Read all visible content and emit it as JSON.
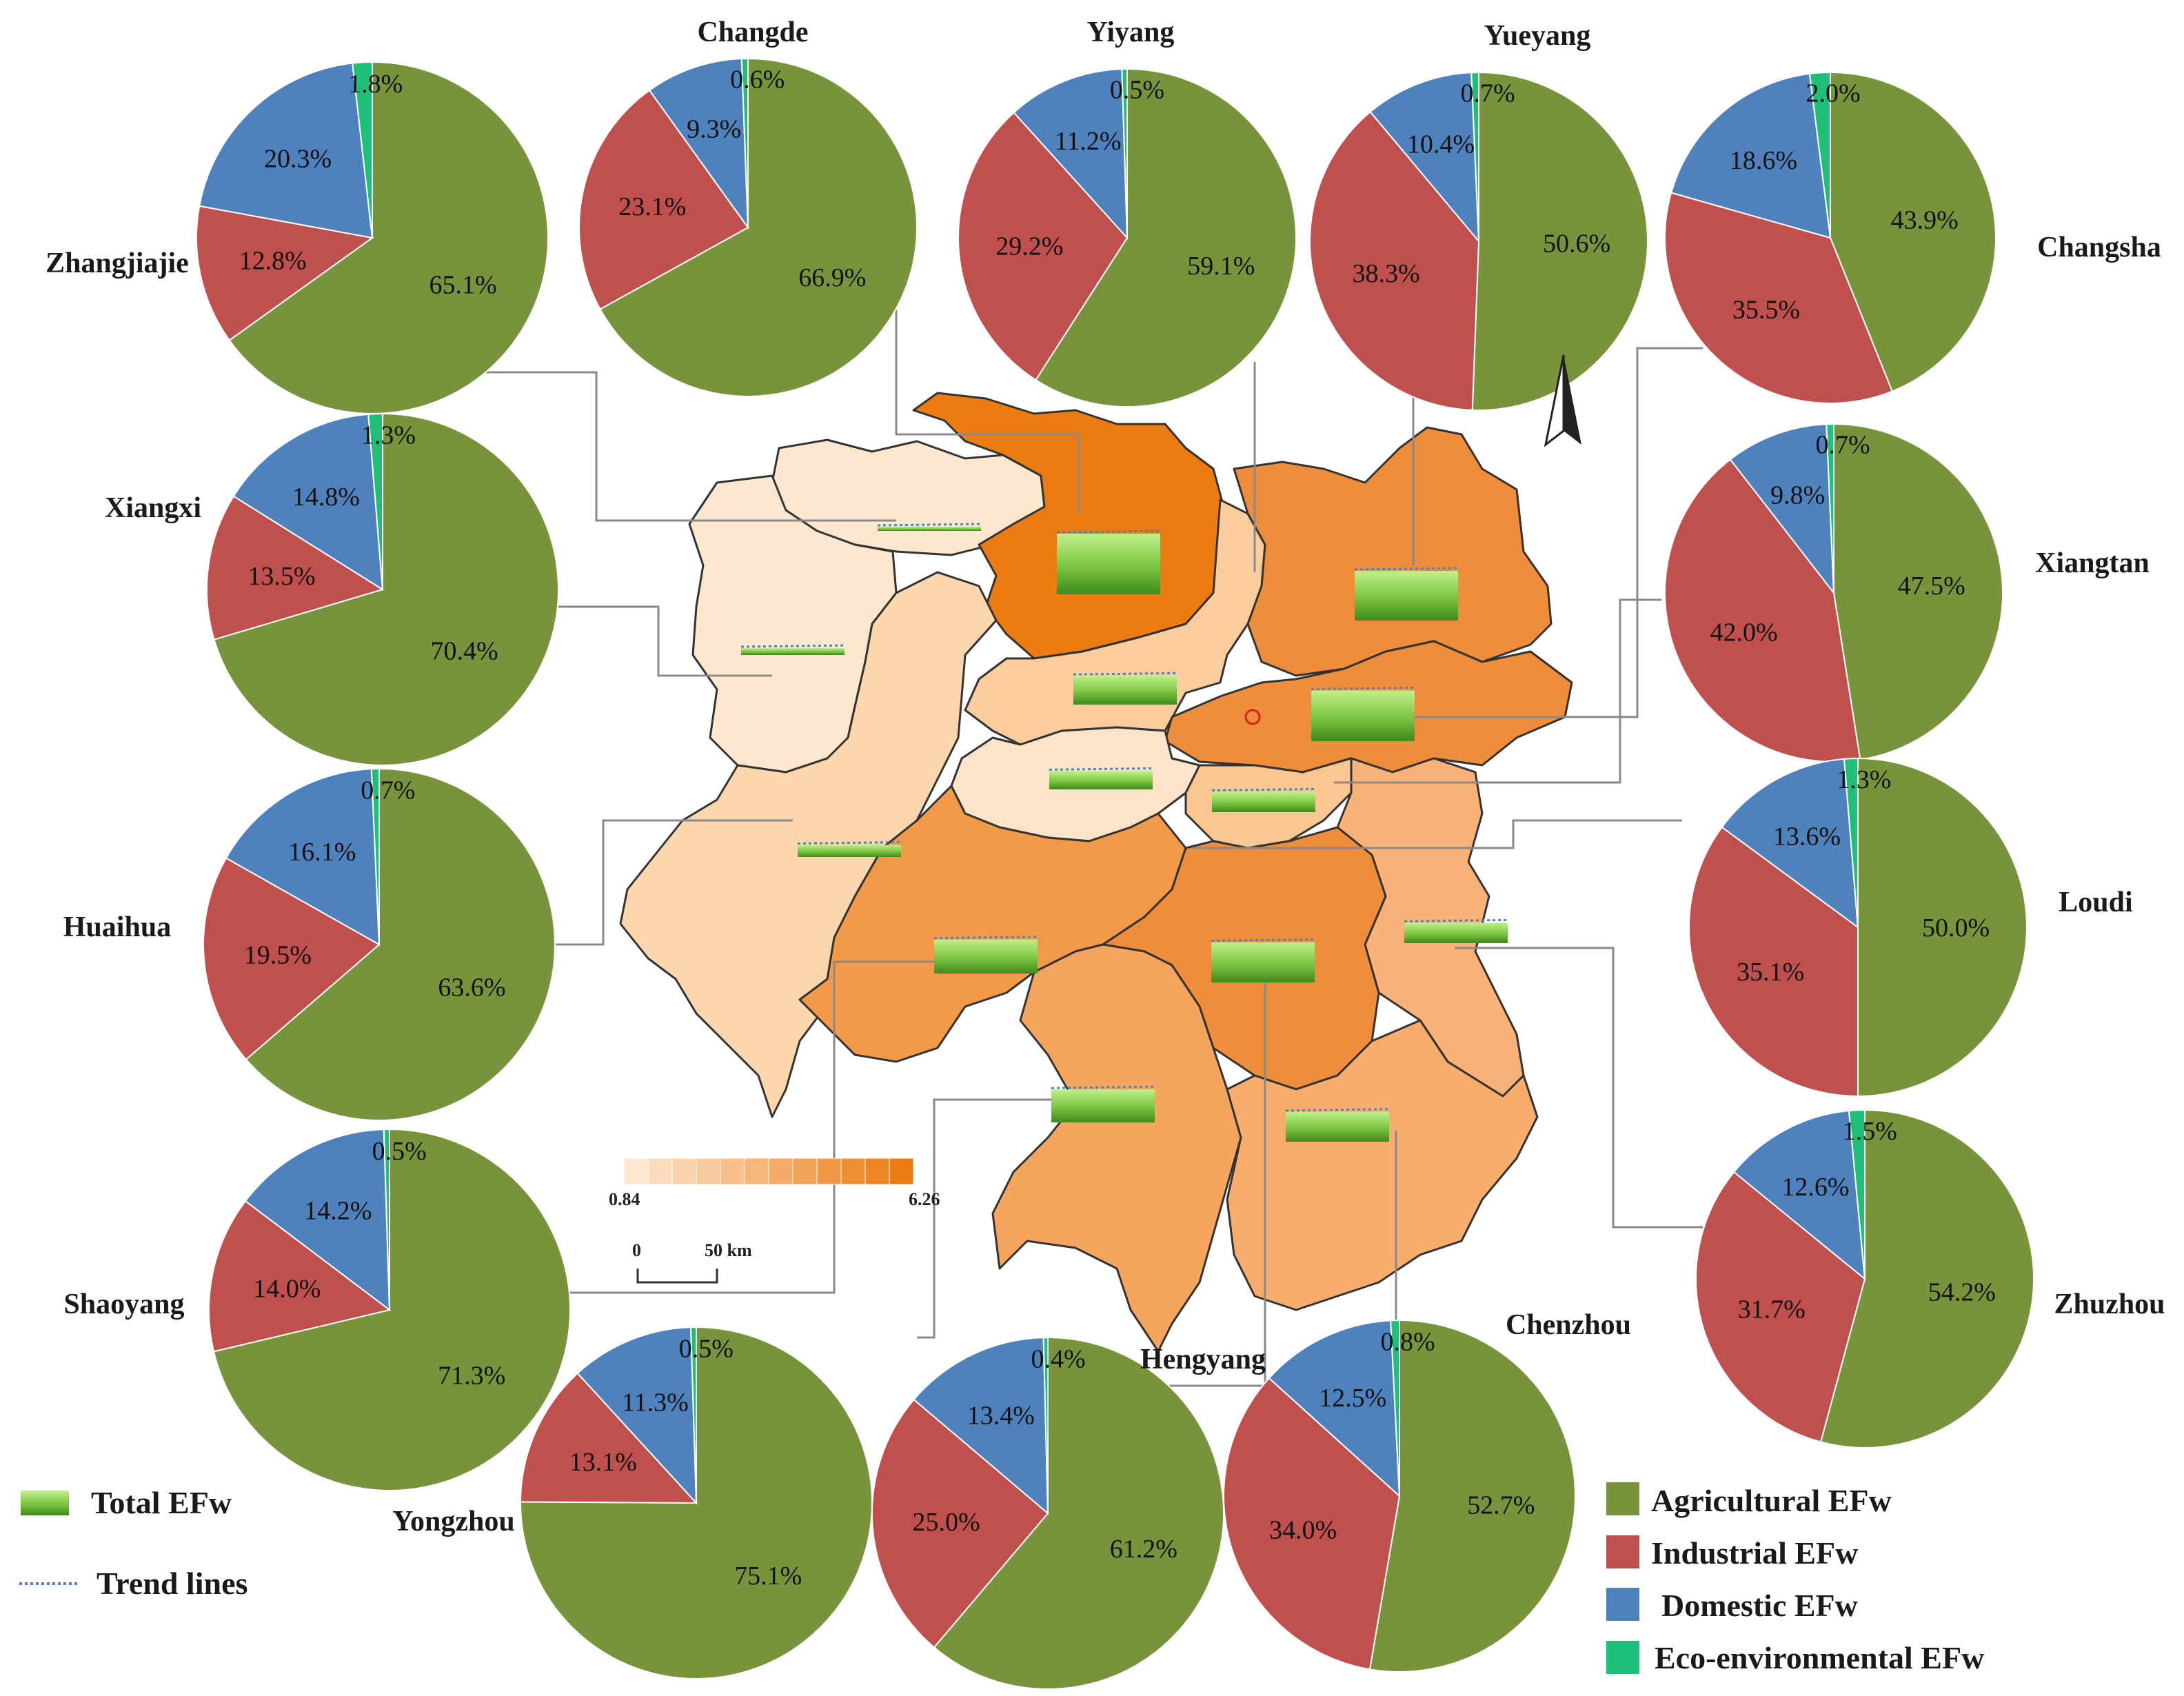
{
  "colors": {
    "agricultural": "#77933c",
    "industrial": "#c0504d",
    "domestic": "#4f81bd",
    "eco": "#1fbf7a",
    "scale_low": "#fde7cf",
    "scale_high": "#ec7b12"
  },
  "legend": {
    "total": "Total EFw",
    "trend": "Trend lines",
    "agricultural": "Agricultural EFw",
    "industrial": "Industrial EFw",
    "domestic": "Domestic EFw",
    "eco": "Eco-environmental EFw"
  },
  "scale_bar": {
    "min_label": "0.84",
    "max_label": "6.26",
    "zero": "0",
    "dist": "50 km"
  },
  "compass_icon": "north-arrow-icon",
  "chart_data": {
    "type": "pie",
    "categories": [
      "Agricultural EFw",
      "Industrial EFw",
      "Domestic EFw",
      "Eco-environmental EFw"
    ],
    "series": [
      {
        "name": "Zhangjiajie",
        "values": [
          65.1,
          12.8,
          20.3,
          1.8
        ],
        "labels": [
          "65.1%",
          "12.8%",
          "20.3%",
          "1.8%"
        ],
        "total_efw": 0.84
      },
      {
        "name": "Changde",
        "values": [
          66.9,
          23.1,
          9.3,
          0.6
        ],
        "labels": [
          "66.9%",
          "23.1%",
          "9.3%",
          "0.6%"
        ],
        "total_efw": 6.26
      },
      {
        "name": "Yiyang",
        "values": [
          59.1,
          29.2,
          11.2,
          0.5
        ],
        "labels": [
          "59.1%",
          "29.2%",
          "11.2%",
          "0.5%"
        ],
        "total_efw": 3.2
      },
      {
        "name": "Yueyang",
        "values": [
          50.6,
          38.3,
          10.4,
          0.7
        ],
        "labels": [
          "50.6%",
          "38.3%",
          "10.4%",
          "0.7%"
        ],
        "total_efw": 5.2
      },
      {
        "name": "Changsha",
        "values": [
          43.9,
          35.5,
          18.6,
          2.0
        ],
        "labels": [
          "43.9%",
          "35.5%",
          "18.6%",
          "2.0%"
        ],
        "total_efw": 5.3
      },
      {
        "name": "Xiangxi",
        "values": [
          70.4,
          13.5,
          14.8,
          1.3
        ],
        "labels": [
          "70.4%",
          "13.5%",
          "14.8%",
          "1.3%"
        ],
        "total_efw": 1.1
      },
      {
        "name": "Xiangtan",
        "values": [
          47.5,
          42.0,
          9.8,
          0.7
        ],
        "labels": [
          "47.5%",
          "42.0%",
          "9.8%",
          "0.7%"
        ],
        "total_efw": 2.4
      },
      {
        "name": "Huaihua",
        "values": [
          63.6,
          19.5,
          16.1,
          0.7
        ],
        "labels": [
          "63.6%",
          "19.5%",
          "16.1%",
          "0.7%"
        ],
        "total_efw": 1.6
      },
      {
        "name": "Loudi",
        "values": [
          50.0,
          35.1,
          13.6,
          1.3
        ],
        "labels": [
          "50.0%",
          "35.1%",
          "13.6%",
          "1.3%"
        ],
        "total_efw": 2.2
      },
      {
        "name": "Shaoyang",
        "values": [
          71.3,
          14.0,
          14.2,
          0.5
        ],
        "labels": [
          "71.3%",
          "14.0%",
          "14.2%",
          "0.5%"
        ],
        "total_efw": 3.7
      },
      {
        "name": "Zhuzhou",
        "values": [
          54.2,
          31.7,
          12.6,
          1.5
        ],
        "labels": [
          "54.2%",
          "31.7%",
          "12.6%",
          "1.5%"
        ],
        "total_efw": 2.4
      },
      {
        "name": "Yongzhou",
        "values": [
          75.1,
          13.1,
          11.3,
          0.5
        ],
        "labels": [
          "75.1%",
          "13.1%",
          "11.3%",
          "0.5%"
        ],
        "total_efw": 3.6
      },
      {
        "name": "Hengyang",
        "values": [
          61.2,
          25.0,
          13.4,
          0.4
        ],
        "labels": [
          "61.2%",
          "25.0%",
          "13.4%",
          "0.4%"
        ],
        "total_efw": 4.3
      },
      {
        "name": "Chenzhou",
        "values": [
          52.7,
          34.0,
          12.5,
          0.8
        ],
        "labels": [
          "52.7%",
          "34.0%",
          "12.5%",
          "0.8%"
        ],
        "total_efw": 3.3
      }
    ],
    "title": "",
    "color_scale_range": [
      0.84,
      6.26
    ],
    "color_scale_steps": 12
  }
}
